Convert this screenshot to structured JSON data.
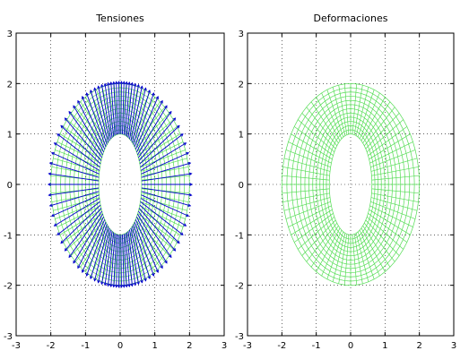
{
  "chart_data": [
    {
      "type": "quiver",
      "title": "Tensiones",
      "xlabel": "",
      "ylabel": "",
      "xlim": [
        -3,
        3
      ],
      "ylim": [
        -3,
        3
      ],
      "xticks": [
        "-3",
        "-2",
        "-1",
        "0",
        "1",
        "2",
        "3"
      ],
      "yticks": [
        "-3",
        "-2",
        "-1",
        "0",
        "1",
        "2",
        "3"
      ],
      "grid": true,
      "mesh": {
        "shape": "annulus",
        "inner_radius": 1,
        "outer_radius": 2,
        "color": "#55dd55"
      },
      "vectors": {
        "description_color": "#0000cc"
      }
    },
    {
      "type": "mesh",
      "title": "Deformaciones",
      "xlabel": "",
      "ylabel": "",
      "xlim": [
        -3,
        3
      ],
      "ylim": [
        -3,
        3
      ],
      "xticks": [
        "-3",
        "-2",
        "-1",
        "0",
        "1",
        "2",
        "3"
      ],
      "yticks": [
        "-3",
        "-2",
        "-1",
        "0",
        "1",
        "2",
        "3"
      ],
      "grid": true,
      "mesh": {
        "shape": "annulus",
        "inner_radius": 1,
        "outer_radius": 2,
        "color": "#55dd55"
      }
    }
  ]
}
